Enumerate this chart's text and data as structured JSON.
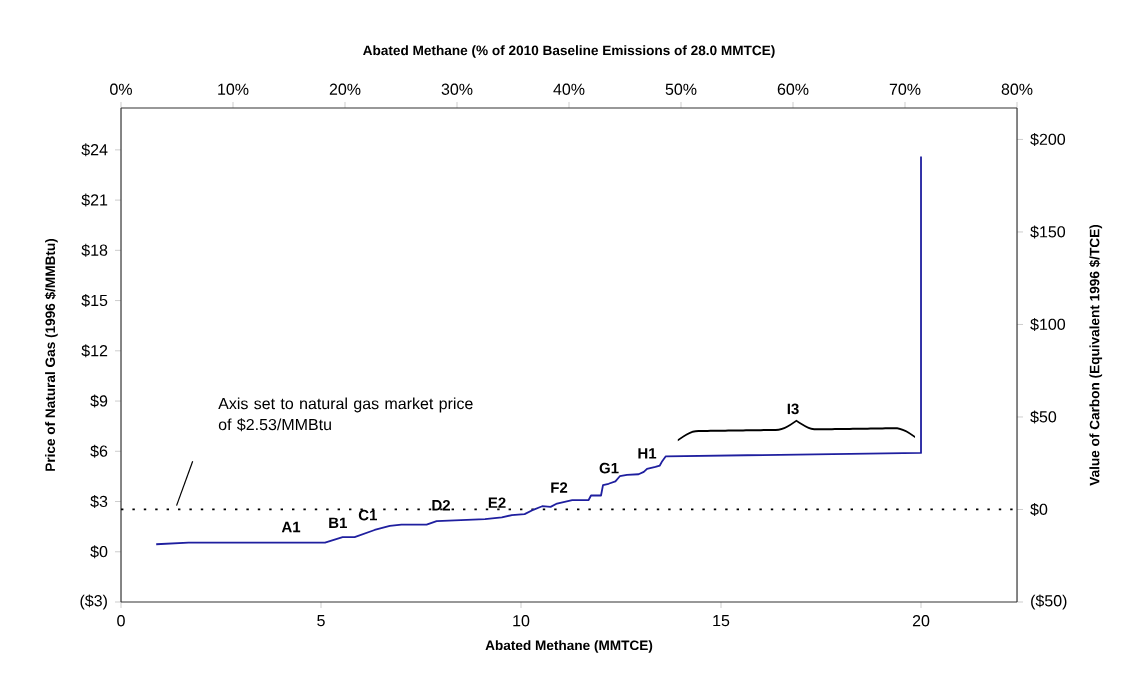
{
  "chart_data": {
    "type": "line",
    "xlabel": "Abated Methane (MMTCE)",
    "ylabel": "Price of Natural Gas (1996 $/MMBtu)",
    "y2label": "Value of Carbon (Equivalent 1996 $/TCE)",
    "x2label": "Abated Methane (% of 2010 Baseline Emissions of 28.0 MMTCE)",
    "x": [
      0.88,
      1.69,
      5.1,
      5.54,
      5.84,
      6.34,
      6.72,
      7.01,
      7.64,
      7.89,
      9.1,
      9.52,
      9.77,
      10.09,
      10.32,
      10.53,
      10.74,
      10.9,
      11.28,
      11.69,
      11.75,
      12.0,
      12.05,
      12.19,
      12.36,
      12.47,
      12.65,
      12.94,
      13.07,
      13.15,
      13.36,
      13.47,
      13.53,
      13.62,
      20.0,
      20.0
    ],
    "values": [
      0.45,
      0.55,
      0.55,
      0.87,
      0.87,
      1.3,
      1.54,
      1.62,
      1.62,
      1.83,
      1.95,
      2.05,
      2.19,
      2.25,
      2.52,
      2.72,
      2.68,
      2.88,
      3.08,
      3.09,
      3.36,
      3.36,
      3.98,
      4.06,
      4.2,
      4.51,
      4.59,
      4.63,
      4.77,
      4.95,
      5.07,
      5.15,
      5.41,
      5.7,
      5.9,
      23.6
    ],
    "color": "#1f1f9f",
    "line_style": "solid",
    "marker": "none",
    "grid": false,
    "xlim": [
      0,
      22.4
    ],
    "xticks": [
      0,
      5,
      10,
      15,
      20
    ],
    "ylim": [
      -3,
      26.5
    ],
    "yticks": [
      {
        "value": -3,
        "label": "($3)"
      },
      {
        "value": 0,
        "label": "$0"
      },
      {
        "value": 3,
        "label": "$3"
      },
      {
        "value": 6,
        "label": "$6"
      },
      {
        "value": 9,
        "label": "$9"
      },
      {
        "value": 12,
        "label": "$12"
      },
      {
        "value": 15,
        "label": "$15"
      },
      {
        "value": 18,
        "label": "$18"
      },
      {
        "value": 21,
        "label": "$21"
      },
      {
        "value": 24,
        "label": "$24"
      }
    ],
    "y2lim": [
      -50,
      217
    ],
    "y2ticks": [
      {
        "value": -50,
        "label": "($50)"
      },
      {
        "value": 0,
        "label": "$0"
      },
      {
        "value": 50,
        "label": "$50"
      },
      {
        "value": 100,
        "label": "$100"
      },
      {
        "value": 150,
        "label": "$150"
      },
      {
        "value": 200,
        "label": "$200"
      }
    ],
    "x2lim": [
      0,
      80
    ],
    "x2ticks": [
      {
        "value": 0,
        "label": "0%"
      },
      {
        "value": 10,
        "label": "10%"
      },
      {
        "value": 20,
        "label": "20%"
      },
      {
        "value": 30,
        "label": "30%"
      },
      {
        "value": 40,
        "label": "40%"
      },
      {
        "value": 50,
        "label": "50%"
      },
      {
        "value": 60,
        "label": "60%"
      },
      {
        "value": 70,
        "label": "70%"
      },
      {
        "value": 80,
        "label": "80%"
      }
    ],
    "ref_lines": [
      {
        "axis": "y",
        "value": 2.53,
        "line_style": "dotted"
      }
    ],
    "annotations": [
      "Axis set to natural gas market price of $2.53/MMBtu",
      {
        "text": "A1",
        "x": 4.25,
        "y": 0.55
      },
      {
        "text": "B1",
        "x": 5.42,
        "y": 0.8
      },
      {
        "text": "C1",
        "x": 6.17,
        "y": 1.25
      },
      {
        "text": "D2",
        "x": 8.0,
        "y": 1.85
      },
      {
        "text": "E2",
        "x": 9.4,
        "y": 2.0
      },
      {
        "text": "F2",
        "x": 10.95,
        "y": 2.9
      },
      {
        "text": "G1",
        "x": 12.2,
        "y": 4.06
      },
      {
        "text": "H1",
        "x": 13.15,
        "y": 4.95
      },
      {
        "text": "I3",
        "x": 16.8,
        "y": 5.8
      }
    ]
  }
}
